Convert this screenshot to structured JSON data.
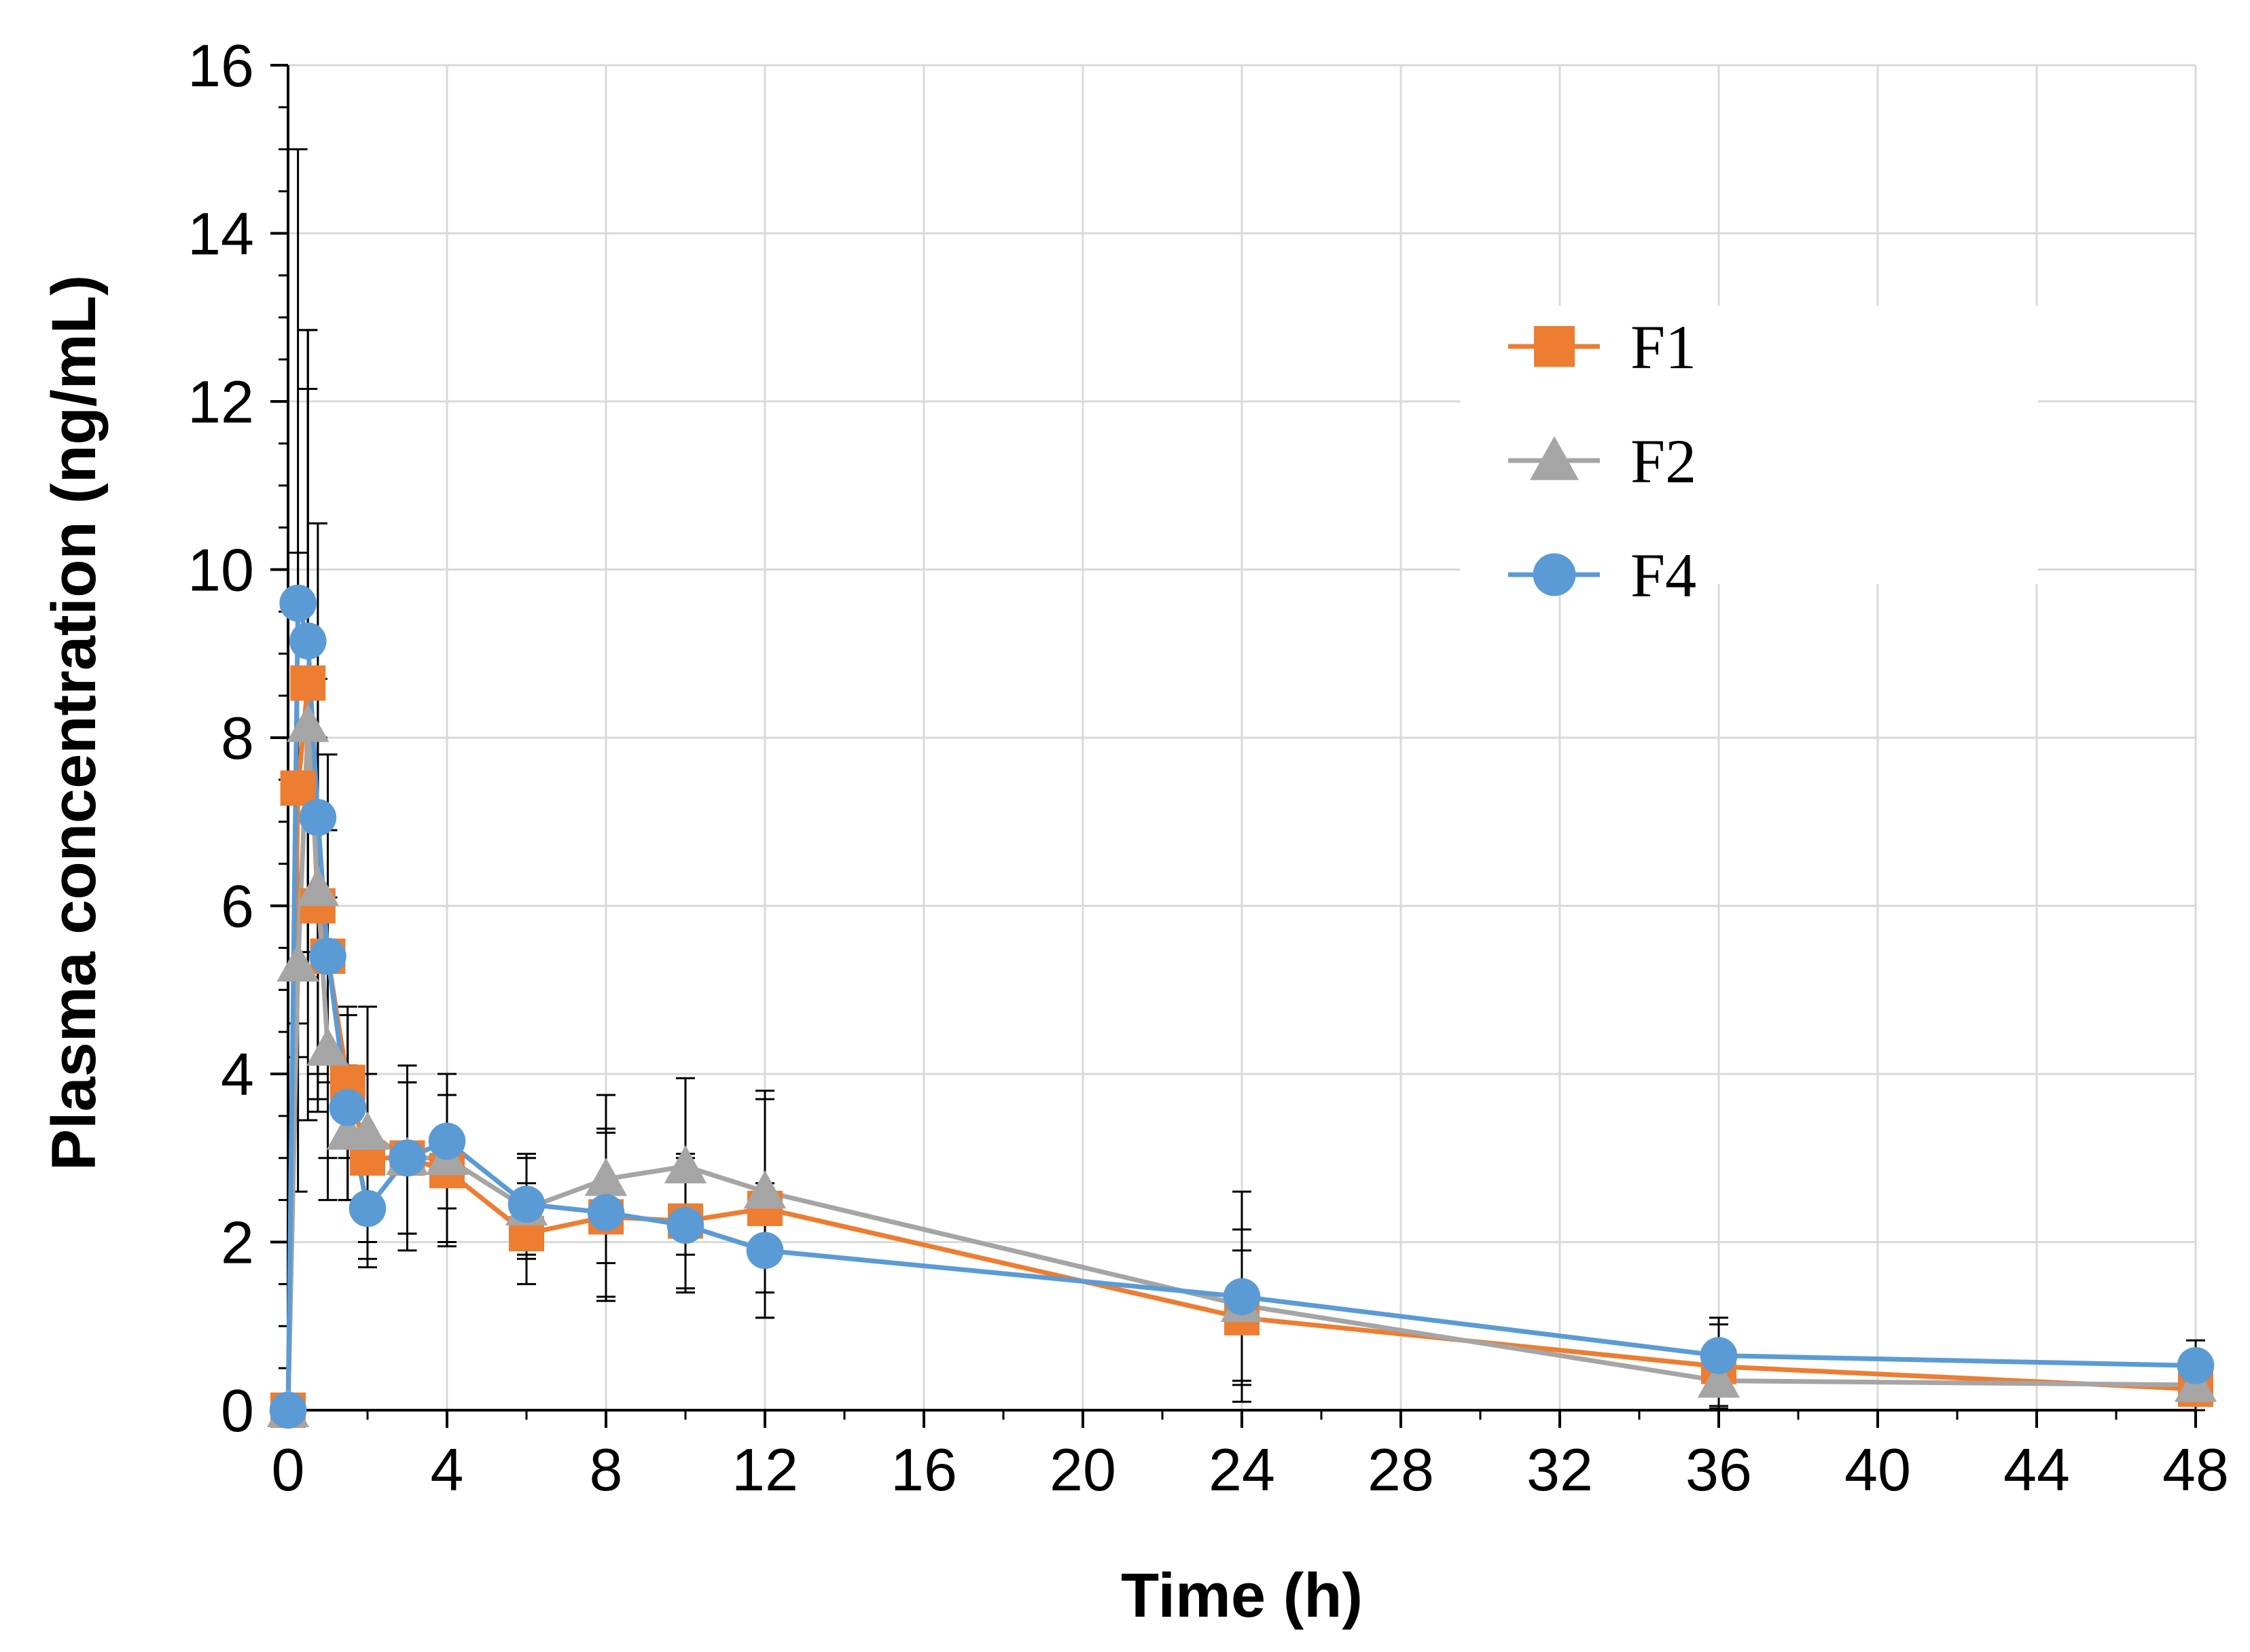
{
  "chart_data": {
    "type": "line",
    "title": "",
    "xlabel": "Time (h)",
    "ylabel": "Plasma concentration (ng/mL)",
    "xlim": [
      0,
      48
    ],
    "ylim": [
      0,
      16
    ],
    "x_ticks": [
      0,
      4,
      8,
      12,
      16,
      20,
      24,
      28,
      32,
      36,
      40,
      44,
      48
    ],
    "y_ticks": [
      0,
      2,
      4,
      6,
      8,
      10,
      12,
      14,
      16
    ],
    "grid": true,
    "legend_position": "upper-right",
    "series": [
      {
        "name": "F1",
        "color": "#ED7D31",
        "marker": "square",
        "x": [
          0,
          0.25,
          0.5,
          0.75,
          1,
          1.5,
          2,
          3,
          4,
          6,
          8,
          10,
          12,
          24,
          36,
          48
        ],
        "y": [
          0,
          7.4,
          8.65,
          6.0,
          5.4,
          3.9,
          3.0,
          3.0,
          2.85,
          2.1,
          2.3,
          2.25,
          2.4,
          1.1,
          0.52,
          0.25
        ],
        "err": [
          0,
          2.8,
          3.5,
          2.0,
          1.5,
          0.9,
          1.0,
          0.9,
          0.9,
          0.6,
          1.0,
          0.8,
          1.3,
          0.8,
          0.5,
          0.3
        ]
      },
      {
        "name": "F2",
        "color": "#A5A5A5",
        "marker": "triangle",
        "x": [
          0,
          0.25,
          0.5,
          0.75,
          1,
          1.5,
          2,
          3,
          4,
          6,
          8,
          10,
          12,
          24,
          36,
          48
        ],
        "y": [
          0,
          5.3,
          8.15,
          6.2,
          4.3,
          3.3,
          3.3,
          3.0,
          3.0,
          2.4,
          2.75,
          2.9,
          2.6,
          1.25,
          0.35,
          0.3
        ],
        "err": [
          0,
          2.7,
          4.7,
          2.5,
          1.8,
          0.8,
          1.5,
          0.9,
          1.0,
          0.6,
          1.0,
          1.05,
          1.2,
          0.9,
          0.3,
          0.2
        ]
      },
      {
        "name": "F4",
        "color": "#5B9BD5",
        "marker": "circle",
        "x": [
          0,
          0.25,
          0.5,
          0.75,
          1,
          1.5,
          2,
          3,
          4,
          6,
          8,
          10,
          12,
          24,
          36,
          48
        ],
        "y": [
          0,
          9.6,
          9.15,
          7.05,
          5.4,
          3.6,
          2.4,
          3.0,
          3.2,
          2.45,
          2.35,
          2.2,
          1.9,
          1.35,
          0.65,
          0.53
        ],
        "err": [
          0,
          5.4,
          3.7,
          3.5,
          2.4,
          1.1,
          0.7,
          1.1,
          0.8,
          0.6,
          1.0,
          0.8,
          0.8,
          1.25,
          0.45,
          0.3
        ]
      }
    ]
  }
}
